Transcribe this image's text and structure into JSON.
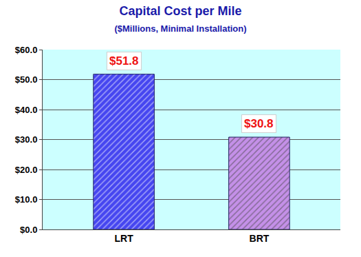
{
  "chart_data": {
    "type": "bar",
    "title": "Capital Cost per Mile",
    "subtitle": "($Millions, Minimal Installation)",
    "categories": [
      "LRT",
      "BRT"
    ],
    "values": [
      51.8,
      30.8
    ],
    "value_labels": [
      "$51.8",
      "$30.8"
    ],
    "data_labels": true,
    "colors": [
      "#4646f0",
      "#c490e8"
    ],
    "ylim": [
      0,
      60
    ],
    "yticks": [
      {
        "value": 0,
        "label": "$0.0"
      },
      {
        "value": 10,
        "label": "$10.0"
      },
      {
        "value": 20,
        "label": "$20.0"
      },
      {
        "value": 30,
        "label": "$30.0"
      },
      {
        "value": 40,
        "label": "$40.0"
      },
      {
        "value": 50,
        "label": "$50.0"
      },
      {
        "value": 60,
        "label": "$60.0"
      }
    ],
    "grid": true
  }
}
